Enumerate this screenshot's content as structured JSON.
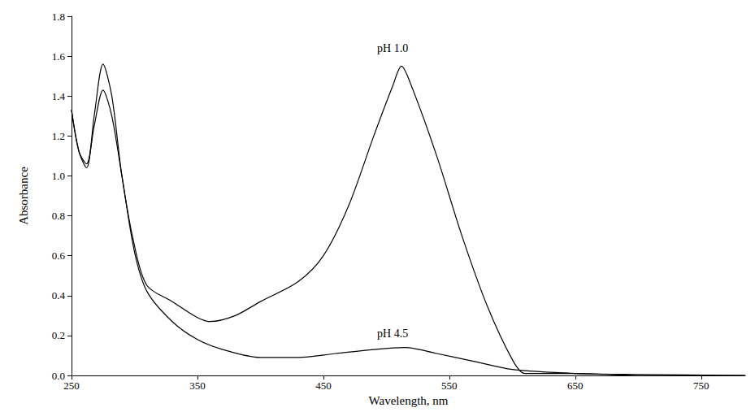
{
  "chart_data": {
    "type": "line",
    "x_label": "Wavelength, nm",
    "y_label": "Absorbance",
    "xlim": [
      250,
      785
    ],
    "xticks": [
      250,
      350,
      450,
      550,
      650,
      750
    ],
    "ylim": [
      0,
      1.8
    ],
    "yticks": [
      {
        "value": 0,
        "label": "0.0"
      },
      0.2,
      0.4,
      0.6,
      0.8,
      {
        "value": 1,
        "label": "1.0"
      },
      1.2,
      1.4,
      1.6,
      1.8
    ],
    "grid": false,
    "series": [
      {
        "name": "pH 1.0",
        "color": "#000000",
        "x": [
          250,
          256,
          262,
          268,
          275,
          282,
          290,
          300,
          310,
          330,
          350,
          360,
          380,
          400,
          430,
          450,
          470,
          490,
          505,
          512,
          520,
          540,
          560,
          580,
          600,
          610,
          650,
          700,
          785
        ],
        "values": [
          1.33,
          1.12,
          1.04,
          1.3,
          1.56,
          1.4,
          1.0,
          0.65,
          0.45,
          0.37,
          0.29,
          0.27,
          0.3,
          0.37,
          0.47,
          0.6,
          0.85,
          1.2,
          1.45,
          1.55,
          1.45,
          1.1,
          0.7,
          0.35,
          0.08,
          0.01,
          0.01,
          0.0,
          0.0
        ]
      },
      {
        "name": "pH 4.5",
        "color": "#000000",
        "x": [
          250,
          256,
          262,
          268,
          275,
          282,
          290,
          300,
          310,
          330,
          350,
          370,
          400,
          430,
          460,
          490,
          515,
          540,
          570,
          600,
          650,
          700,
          785
        ],
        "values": [
          1.33,
          1.12,
          1.06,
          1.25,
          1.43,
          1.3,
          1.0,
          0.62,
          0.42,
          0.27,
          0.18,
          0.13,
          0.09,
          0.09,
          0.11,
          0.13,
          0.14,
          0.11,
          0.07,
          0.03,
          0.01,
          0.005,
          0.0
        ]
      }
    ],
    "annotations": [
      {
        "text": "pH 1.0",
        "x": 505,
        "y": 1.64
      },
      {
        "text": "pH 4.5",
        "x": 505,
        "y": 0.21
      }
    ]
  }
}
